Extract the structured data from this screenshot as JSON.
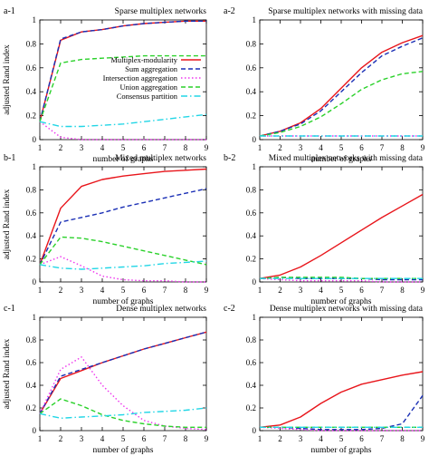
{
  "colors": {
    "multiplex_modularity": "#e8151b",
    "sum_aggregation": "#1a2fb5",
    "intersection_aggregation": "#ee33ee",
    "union_aggregation": "#2ad12a",
    "consensus_partition": "#22d6e6"
  },
  "chart_data": [
    {
      "type": "line",
      "panel_label": "a-1",
      "title": "Sparse multiplex networks",
      "xlabel": "number of graphs",
      "ylabel": "adjusted Rand index",
      "x": [
        1,
        2,
        3,
        4,
        5,
        6,
        7,
        8,
        9
      ],
      "xlim": [
        1,
        9
      ],
      "ylim": [
        0,
        1
      ],
      "xticks": [
        "1",
        "2",
        "3",
        "4",
        "5",
        "6",
        "7",
        "8",
        "9"
      ],
      "yticks": [
        "0",
        "0.2",
        "0.4",
        "0.6",
        "0.8",
        "1"
      ],
      "legend_position": "center",
      "legend": [
        "Multiplex-modularity",
        "Sum aggregation",
        "Intersection aggregation",
        "Union aggregation",
        "Consensus partition"
      ],
      "series": [
        {
          "name": "Multiplex-modularity",
          "style": "solid",
          "color_key": "multiplex_modularity",
          "values": [
            0.15,
            0.83,
            0.9,
            0.92,
            0.95,
            0.97,
            0.98,
            0.99,
            0.99
          ]
        },
        {
          "name": "Sum aggregation",
          "style": "dash",
          "color_key": "sum_aggregation",
          "values": [
            0.15,
            0.84,
            0.9,
            0.92,
            0.95,
            0.97,
            0.98,
            0.99,
            0.99
          ]
        },
        {
          "name": "Intersection aggregation",
          "style": "dot",
          "color_key": "intersection_aggregation",
          "values": [
            0.15,
            0.02,
            0.0,
            0.0,
            0.0,
            0.0,
            0.0,
            0.0,
            0.0
          ]
        },
        {
          "name": "Union aggregation",
          "style": "dash",
          "color_key": "union_aggregation",
          "values": [
            0.15,
            0.64,
            0.67,
            0.68,
            0.69,
            0.7,
            0.7,
            0.7,
            0.7
          ]
        },
        {
          "name": "Consensus partition",
          "style": "dashdot",
          "color_key": "consensus_partition",
          "values": [
            0.15,
            0.11,
            0.11,
            0.12,
            0.13,
            0.15,
            0.17,
            0.19,
            0.21
          ]
        }
      ]
    },
    {
      "type": "line",
      "panel_label": "a-2",
      "title": "Sparse multiplex networks with missing data",
      "xlabel": "number of graphs",
      "ylabel": "",
      "x": [
        1,
        2,
        3,
        4,
        5,
        6,
        7,
        8,
        9
      ],
      "xlim": [
        1,
        9
      ],
      "ylim": [
        0,
        1
      ],
      "xticks": [
        "1",
        "2",
        "3",
        "4",
        "5",
        "6",
        "7",
        "8",
        "9"
      ],
      "yticks": [
        "0",
        "0.2",
        "0.4",
        "0.6",
        "0.8",
        "1"
      ],
      "series": [
        {
          "style": "solid",
          "color_key": "multiplex_modularity",
          "values": [
            0.03,
            0.07,
            0.14,
            0.26,
            0.43,
            0.6,
            0.73,
            0.81,
            0.87
          ]
        },
        {
          "style": "dash",
          "color_key": "sum_aggregation",
          "values": [
            0.03,
            0.07,
            0.13,
            0.24,
            0.4,
            0.56,
            0.7,
            0.78,
            0.85
          ]
        },
        {
          "style": "dot",
          "color_key": "intersection_aggregation",
          "values": [
            0.03,
            0.03,
            0.03,
            0.03,
            0.03,
            0.03,
            0.03,
            0.03,
            0.03
          ]
        },
        {
          "style": "dash",
          "color_key": "union_aggregation",
          "values": [
            0.03,
            0.06,
            0.11,
            0.19,
            0.3,
            0.42,
            0.5,
            0.55,
            0.57
          ]
        },
        {
          "style": "dashdot",
          "color_key": "consensus_partition",
          "values": [
            0.03,
            0.03,
            0.03,
            0.03,
            0.03,
            0.03,
            0.03,
            0.03,
            0.03
          ]
        }
      ]
    },
    {
      "type": "line",
      "panel_label": "b-1",
      "title": "Mixed multiplex networks",
      "xlabel": "number of graphs",
      "ylabel": "adjusted Rand index",
      "x": [
        1,
        2,
        3,
        4,
        5,
        6,
        7,
        8,
        9
      ],
      "xlim": [
        1,
        9
      ],
      "ylim": [
        0,
        1
      ],
      "xticks": [
        "1",
        "2",
        "3",
        "4",
        "5",
        "6",
        "7",
        "8",
        "9"
      ],
      "yticks": [
        "0",
        "0.2",
        "0.4",
        "0.6",
        "0.8",
        "1"
      ],
      "series": [
        {
          "style": "solid",
          "color_key": "multiplex_modularity",
          "values": [
            0.15,
            0.64,
            0.83,
            0.89,
            0.92,
            0.94,
            0.96,
            0.97,
            0.98
          ]
        },
        {
          "style": "dash",
          "color_key": "sum_aggregation",
          "values": [
            0.15,
            0.52,
            0.56,
            0.6,
            0.65,
            0.69,
            0.73,
            0.77,
            0.81
          ]
        },
        {
          "style": "dot",
          "color_key": "intersection_aggregation",
          "values": [
            0.15,
            0.22,
            0.14,
            0.05,
            0.02,
            0.01,
            0.01,
            0.0,
            0.0
          ]
        },
        {
          "style": "dash",
          "color_key": "union_aggregation",
          "values": [
            0.15,
            0.39,
            0.38,
            0.35,
            0.31,
            0.27,
            0.23,
            0.19,
            0.15
          ]
        },
        {
          "style": "dashdot",
          "color_key": "consensus_partition",
          "values": [
            0.15,
            0.12,
            0.11,
            0.12,
            0.13,
            0.14,
            0.16,
            0.17,
            0.18
          ]
        }
      ]
    },
    {
      "type": "line",
      "panel_label": "b-2",
      "title": "Mixed multiplex networks with missing data",
      "xlabel": "number of graphs",
      "ylabel": "",
      "x": [
        1,
        2,
        3,
        4,
        5,
        6,
        7,
        8,
        9
      ],
      "xlim": [
        1,
        9
      ],
      "ylim": [
        0,
        1
      ],
      "xticks": [
        "1",
        "2",
        "3",
        "4",
        "5",
        "6",
        "7",
        "8",
        "9"
      ],
      "yticks": [
        "0",
        "0.2",
        "0.4",
        "0.6",
        "0.8",
        "1"
      ],
      "series": [
        {
          "style": "solid",
          "color_key": "multiplex_modularity",
          "values": [
            0.03,
            0.06,
            0.13,
            0.23,
            0.34,
            0.45,
            0.56,
            0.66,
            0.76
          ]
        },
        {
          "style": "dash",
          "color_key": "sum_aggregation",
          "values": [
            0.03,
            0.04,
            0.03,
            0.03,
            0.03,
            0.03,
            0.02,
            0.02,
            0.02
          ]
        },
        {
          "style": "dot",
          "color_key": "intersection_aggregation",
          "values": [
            0.03,
            0.02,
            0.01,
            0.01,
            0.01,
            0.01,
            0.0,
            0.0,
            0.0
          ]
        },
        {
          "style": "dash",
          "color_key": "union_aggregation",
          "values": [
            0.03,
            0.04,
            0.04,
            0.04,
            0.04,
            0.03,
            0.03,
            0.03,
            0.03
          ]
        },
        {
          "style": "dashdot",
          "color_key": "consensus_partition",
          "values": [
            0.03,
            0.03,
            0.03,
            0.03,
            0.03,
            0.03,
            0.03,
            0.03,
            0.03
          ]
        }
      ]
    },
    {
      "type": "line",
      "panel_label": "c-1",
      "title": "Dense multiplex networks",
      "xlabel": "number of graphs",
      "ylabel": "adjusted Rand index",
      "x": [
        1,
        2,
        3,
        4,
        5,
        6,
        7,
        8,
        9
      ],
      "xlim": [
        1,
        9
      ],
      "ylim": [
        0,
        1
      ],
      "xticks": [
        "1",
        "2",
        "3",
        "4",
        "5",
        "6",
        "7",
        "8",
        "9"
      ],
      "yticks": [
        "0",
        "0.2",
        "0.4",
        "0.6",
        "0.8",
        "1"
      ],
      "series": [
        {
          "style": "solid",
          "color_key": "multiplex_modularity",
          "values": [
            0.15,
            0.46,
            0.53,
            0.6,
            0.66,
            0.72,
            0.77,
            0.82,
            0.87
          ]
        },
        {
          "style": "dash",
          "color_key": "sum_aggregation",
          "values": [
            0.15,
            0.48,
            0.54,
            0.6,
            0.66,
            0.72,
            0.77,
            0.82,
            0.87
          ]
        },
        {
          "style": "dot",
          "color_key": "intersection_aggregation",
          "values": [
            0.15,
            0.54,
            0.65,
            0.4,
            0.22,
            0.09,
            0.04,
            0.02,
            0.01
          ]
        },
        {
          "style": "dash",
          "color_key": "union_aggregation",
          "values": [
            0.15,
            0.28,
            0.22,
            0.14,
            0.09,
            0.06,
            0.04,
            0.03,
            0.03
          ]
        },
        {
          "style": "dashdot",
          "color_key": "consensus_partition",
          "values": [
            0.15,
            0.11,
            0.12,
            0.13,
            0.14,
            0.16,
            0.17,
            0.18,
            0.2
          ]
        }
      ]
    },
    {
      "type": "line",
      "panel_label": "c-2",
      "title": "Dense multiplex networks with missing data",
      "xlabel": "number of graphs",
      "ylabel": "",
      "x": [
        1,
        2,
        3,
        4,
        5,
        6,
        7,
        8,
        9
      ],
      "xlim": [
        1,
        9
      ],
      "ylim": [
        0,
        1
      ],
      "xticks": [
        "1",
        "2",
        "3",
        "4",
        "5",
        "6",
        "7",
        "8",
        "9"
      ],
      "yticks": [
        "0",
        "0.2",
        "0.4",
        "0.6",
        "0.8",
        "1"
      ],
      "series": [
        {
          "style": "solid",
          "color_key": "multiplex_modularity",
          "values": [
            0.03,
            0.05,
            0.12,
            0.24,
            0.34,
            0.41,
            0.45,
            0.49,
            0.52
          ]
        },
        {
          "style": "dash",
          "color_key": "sum_aggregation",
          "values": [
            0.03,
            0.03,
            0.02,
            0.01,
            0.01,
            0.01,
            0.02,
            0.06,
            0.31
          ]
        },
        {
          "style": "dot",
          "color_key": "intersection_aggregation",
          "values": [
            0.03,
            0.02,
            0.01,
            0.0,
            0.0,
            0.0,
            0.0,
            0.0,
            0.0
          ]
        },
        {
          "style": "dash",
          "color_key": "union_aggregation",
          "values": [
            0.03,
            0.03,
            0.03,
            0.03,
            0.03,
            0.03,
            0.03,
            0.03,
            0.03
          ]
        },
        {
          "style": "dashdot",
          "color_key": "consensus_partition",
          "values": [
            0.03,
            0.03,
            0.03,
            0.03,
            0.03,
            0.03,
            0.03,
            0.03,
            0.03
          ]
        }
      ]
    }
  ]
}
